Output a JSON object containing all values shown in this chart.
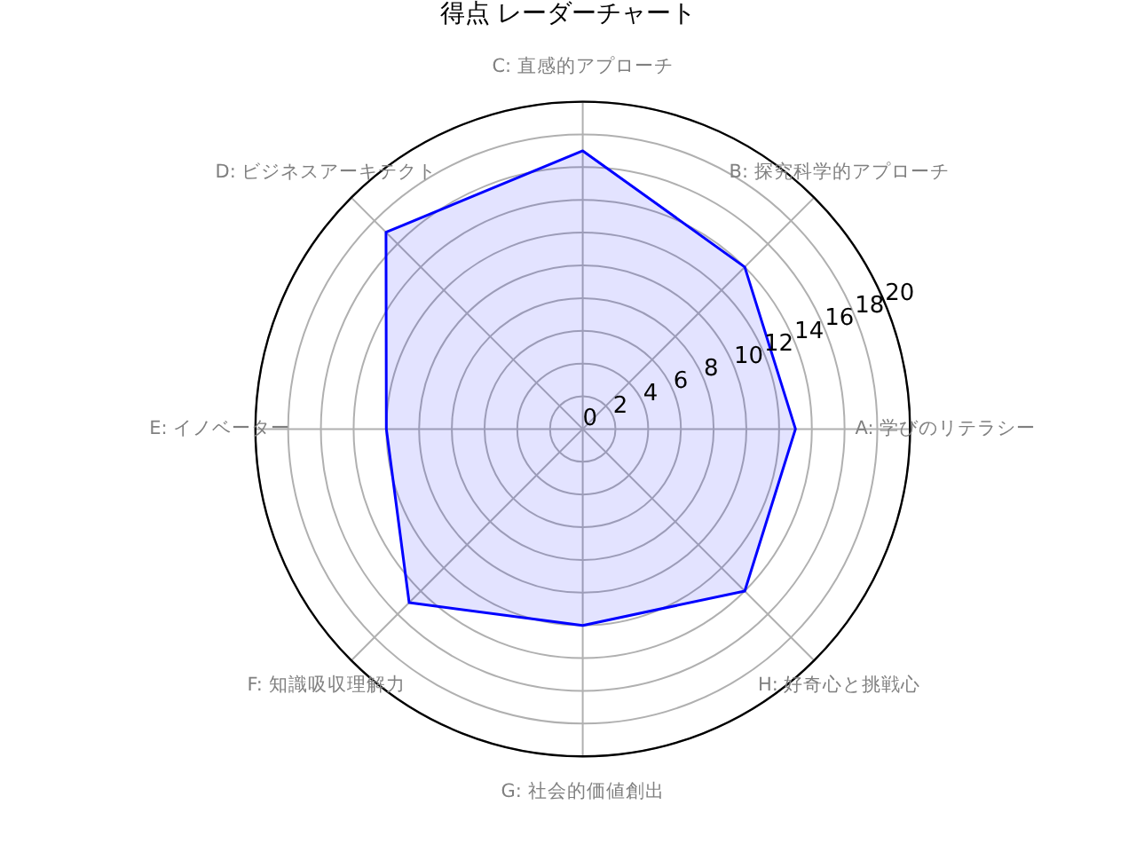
{
  "chart_data": {
    "type": "radar",
    "title": "得点 レーダーチャート",
    "categories": [
      "C: 直感的アプローチ",
      "B: 探究科学的アプローチ",
      "A: 学びのリテラシー",
      "H: 好奇心と挑戦心",
      "G: 社会的価値創出",
      "F: 知識吸収理解力",
      "E: イノベーター",
      "D: ビジネスアーキテクト"
    ],
    "series": [
      {
        "color": "#0000ff",
        "values": [
          17,
          14,
          13,
          14,
          12,
          15,
          12,
          17
        ]
      }
    ],
    "ylim": [
      0,
      20
    ],
    "yticks": [
      0,
      2,
      4,
      6,
      8,
      10,
      12,
      14,
      16,
      18,
      20
    ],
    "grid": true
  }
}
